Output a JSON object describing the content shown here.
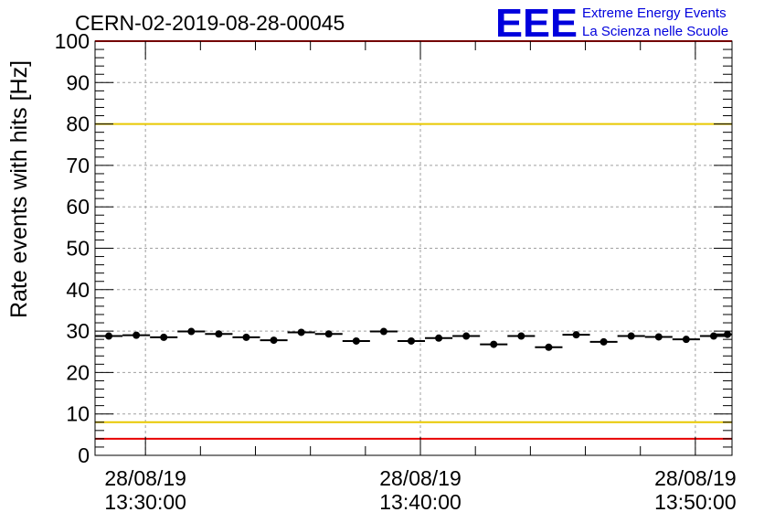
{
  "chart_data": {
    "type": "scatter",
    "title": "CERN-02-2019-08-28-00045",
    "ylabel": "Rate events with hits [Hz]",
    "xlabel": "",
    "ylim": [
      0,
      100
    ],
    "y_ticks": [
      0,
      10,
      20,
      30,
      40,
      50,
      60,
      70,
      80,
      90,
      100
    ],
    "x_ticks": [
      {
        "time": "13:30:00",
        "date": "28/08/19",
        "line1": "28/08/19",
        "line2": "13:30:00"
      },
      {
        "time": "13:40:00",
        "date": "28/08/19",
        "line1": "28/08/19",
        "line2": "13:40:00"
      },
      {
        "time": "13:50:00",
        "date": "28/08/19",
        "line1": "28/08/19",
        "line2": "13:50:00"
      }
    ],
    "x_range": [
      "13:28:10",
      "13:51:20"
    ],
    "grid": true,
    "bin_width_seconds": 60,
    "series": [
      {
        "x": [
          "13:28:40",
          "13:29:40",
          "13:30:40",
          "13:31:40",
          "13:32:40",
          "13:33:40",
          "13:34:40",
          "13:35:40",
          "13:36:40",
          "13:37:40",
          "13:38:40",
          "13:39:40",
          "13:40:40",
          "13:41:40",
          "13:42:40",
          "13:43:40",
          "13:44:40",
          "13:45:40",
          "13:46:40",
          "13:47:40",
          "13:48:40",
          "13:49:40",
          "13:50:40",
          "13:51:10"
        ],
        "values": [
          28.8,
          29.0,
          28.5,
          29.9,
          29.3,
          28.5,
          27.8,
          29.7,
          29.3,
          27.6,
          29.9,
          27.6,
          28.3,
          28.8,
          26.8,
          28.8,
          26.1,
          29.1,
          27.4,
          28.8,
          28.6,
          28.0,
          28.8,
          29.2
        ]
      }
    ],
    "reference_lines": [
      {
        "value": 80,
        "color": "#e8c800"
      },
      {
        "value": 8,
        "color": "#e8c800"
      },
      {
        "value": 4,
        "color": "#e80000"
      },
      {
        "value": 100,
        "color": "#e80000"
      }
    ]
  },
  "logo": {
    "mark": "EEE",
    "line1": "Extreme Energy Events",
    "line2": "La Scienza nelle Scuole",
    "color": "#0000dd"
  }
}
